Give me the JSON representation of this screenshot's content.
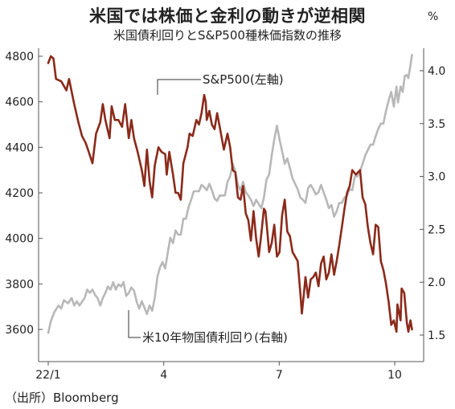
{
  "title": "米国では株価と金利の動きが逆相関",
  "subtitle": "米国債利回りとS&P500種株価指数の推移",
  "right_unit": "%",
  "source": "（出所）Bloomberg",
  "colors": {
    "sp500": "#8b2a1a",
    "yield": "#b8b8b8",
    "axis": "#555555"
  },
  "chart_data": {
    "type": "line",
    "title": "米国では株価と金利の動きが逆相関",
    "subtitle": "米国債利回りとS&P500種株価指数の推移",
    "x_ticks": [
      {
        "label": "22/1",
        "t": 0
      },
      {
        "label": "4",
        "t": 3
      },
      {
        "label": "7",
        "t": 6
      },
      {
        "label": "10",
        "t": 9
      }
    ],
    "xlim": [
      -0.05,
      9.45
    ],
    "left_axis": {
      "ticks": [
        3600,
        3800,
        4000,
        4200,
        4400,
        4600,
        4800
      ],
      "ylim": [
        3530,
        4890
      ]
    },
    "right_axis": {
      "ticks": [
        "1.5",
        "2.0",
        "2.5",
        "3.0",
        "3.5",
        "4.0"
      ],
      "ylim": [
        1.25,
        4.3
      ]
    },
    "series": [
      {
        "name": "S&P500(左軸)",
        "axis": "left",
        "values": [
          [
            0.0,
            4770
          ],
          [
            0.05,
            4800
          ],
          [
            0.1,
            4790
          ],
          [
            0.15,
            4700
          ],
          [
            0.25,
            4690
          ],
          [
            0.35,
            4650
          ],
          [
            0.4,
            4700
          ],
          [
            0.5,
            4590
          ],
          [
            0.58,
            4510
          ],
          [
            0.65,
            4450
          ],
          [
            0.72,
            4420
          ],
          [
            0.78,
            4380
          ],
          [
            0.85,
            4330
          ],
          [
            0.92,
            4460
          ],
          [
            1.0,
            4510
          ],
          [
            1.05,
            4590
          ],
          [
            1.1,
            4520
          ],
          [
            1.18,
            4440
          ],
          [
            1.22,
            4580
          ],
          [
            1.28,
            4520
          ],
          [
            1.35,
            4520
          ],
          [
            1.42,
            4490
          ],
          [
            1.48,
            4590
          ],
          [
            1.55,
            4440
          ],
          [
            1.6,
            4520
          ],
          [
            1.65,
            4440
          ],
          [
            1.72,
            4380
          ],
          [
            1.8,
            4300
          ],
          [
            1.85,
            4230
          ],
          [
            1.9,
            4390
          ],
          [
            1.95,
            4250
          ],
          [
            2.0,
            4180
          ],
          [
            2.05,
            4320
          ],
          [
            2.12,
            4400
          ],
          [
            2.18,
            4380
          ],
          [
            2.25,
            4370
          ],
          [
            2.28,
            4280
          ],
          [
            2.33,
            4380
          ],
          [
            2.4,
            4280
          ],
          [
            2.45,
            4200
          ],
          [
            2.5,
            4200
          ],
          [
            2.55,
            4170
          ],
          [
            2.6,
            4330
          ],
          [
            2.68,
            4400
          ],
          [
            2.72,
            4460
          ],
          [
            2.78,
            4450
          ],
          [
            2.85,
            4520
          ],
          [
            2.9,
            4500
          ],
          [
            2.95,
            4550
          ],
          [
            3.0,
            4630
          ],
          [
            3.03,
            4600
          ],
          [
            3.05,
            4520
          ],
          [
            3.1,
            4560
          ],
          [
            3.15,
            4500
          ],
          [
            3.2,
            4480
          ],
          [
            3.25,
            4550
          ],
          [
            3.3,
            4490
          ],
          [
            3.38,
            4390
          ],
          [
            3.45,
            4460
          ],
          [
            3.5,
            4400
          ],
          [
            3.55,
            4300
          ],
          [
            3.6,
            4290
          ],
          [
            3.65,
            4180
          ],
          [
            3.7,
            4170
          ],
          [
            3.75,
            4230
          ],
          [
            3.8,
            4110
          ],
          [
            3.85,
            4080
          ],
          [
            3.9,
            3990
          ],
          [
            3.95,
            4120
          ],
          [
            4.0,
            4000
          ],
          [
            4.05,
            3920
          ],
          [
            4.1,
            4020
          ],
          [
            4.15,
            4130
          ],
          [
            4.18,
            4120
          ],
          [
            4.22,
            4020
          ],
          [
            4.25,
            3940
          ],
          [
            4.3,
            3980
          ],
          [
            4.35,
            4060
          ],
          [
            4.4,
            3920
          ],
          [
            4.45,
            3940
          ],
          [
            4.5,
            4100
          ],
          [
            4.55,
            4170
          ],
          [
            4.6,
            4030
          ],
          [
            4.65,
            4010
          ],
          [
            4.7,
            3940
          ],
          [
            4.75,
            3920
          ],
          [
            4.8,
            3900
          ],
          [
            4.85,
            3760
          ],
          [
            4.88,
            3670
          ],
          [
            4.92,
            3760
          ],
          [
            4.95,
            3830
          ],
          [
            5.0,
            3740
          ],
          [
            5.05,
            3820
          ],
          [
            5.1,
            3830
          ],
          [
            5.15,
            3850
          ],
          [
            5.2,
            3790
          ],
          [
            5.25,
            3890
          ],
          [
            5.3,
            3920
          ],
          [
            5.35,
            3820
          ],
          [
            5.4,
            3850
          ],
          [
            5.45,
            3930
          ],
          [
            5.5,
            3840
          ],
          [
            5.55,
            3900
          ],
          [
            5.6,
            3970
          ],
          [
            5.65,
            4050
          ],
          [
            5.7,
            4130
          ],
          [
            5.75,
            4200
          ],
          [
            5.8,
            4230
          ],
          [
            5.85,
            4300
          ],
          [
            5.92,
            4280
          ],
          [
            6.0,
            4300
          ],
          [
            6.05,
            4180
          ],
          [
            6.1,
            4150
          ],
          [
            6.15,
            4050
          ],
          [
            6.2,
            3980
          ],
          [
            6.25,
            3930
          ],
          [
            6.3,
            4060
          ],
          [
            6.35,
            4050
          ],
          [
            6.4,
            3900
          ],
          [
            6.45,
            3860
          ],
          [
            6.5,
            3800
          ],
          [
            6.55,
            3720
          ],
          [
            6.6,
            3620
          ],
          [
            6.65,
            3640
          ],
          [
            6.7,
            3590
          ],
          [
            6.72,
            3710
          ],
          [
            6.78,
            3640
          ],
          [
            6.8,
            3780
          ],
          [
            6.85,
            3760
          ],
          [
            6.9,
            3630
          ],
          [
            6.93,
            3590
          ],
          [
            6.97,
            3640
          ],
          [
            7.0,
            3600
          ]
        ]
      },
      {
        "name": "米10年物国債利回り(右軸)",
        "axis": "right",
        "values": [
          [
            0.0,
            1.52
          ],
          [
            0.05,
            1.63
          ],
          [
            0.12,
            1.72
          ],
          [
            0.2,
            1.78
          ],
          [
            0.25,
            1.75
          ],
          [
            0.3,
            1.83
          ],
          [
            0.38,
            1.8
          ],
          [
            0.45,
            1.85
          ],
          [
            0.5,
            1.78
          ],
          [
            0.55,
            1.82
          ],
          [
            0.6,
            1.78
          ],
          [
            0.7,
            1.85
          ],
          [
            0.75,
            1.93
          ],
          [
            0.8,
            1.9
          ],
          [
            0.85,
            1.93
          ],
          [
            0.9,
            1.88
          ],
          [
            0.95,
            1.85
          ],
          [
            1.0,
            1.78
          ],
          [
            1.05,
            1.85
          ],
          [
            1.1,
            1.9
          ],
          [
            1.15,
            1.96
          ],
          [
            1.2,
            1.93
          ],
          [
            1.25,
            2.0
          ],
          [
            1.3,
            1.93
          ],
          [
            1.35,
            1.98
          ],
          [
            1.4,
            1.96
          ],
          [
            1.45,
            2.0
          ],
          [
            1.5,
            1.87
          ],
          [
            1.55,
            1.9
          ],
          [
            1.6,
            1.95
          ],
          [
            1.65,
            1.92
          ],
          [
            1.7,
            1.82
          ],
          [
            1.75,
            1.75
          ],
          [
            1.8,
            1.82
          ],
          [
            1.85,
            1.76
          ],
          [
            1.9,
            1.7
          ],
          [
            1.95,
            1.78
          ],
          [
            2.0,
            1.73
          ],
          [
            2.05,
            1.85
          ],
          [
            2.1,
            2.05
          ],
          [
            2.15,
            2.14
          ],
          [
            2.2,
            2.19
          ],
          [
            2.25,
            2.13
          ],
          [
            2.3,
            2.28
          ],
          [
            2.35,
            2.42
          ],
          [
            2.4,
            2.37
          ],
          [
            2.45,
            2.49
          ],
          [
            2.5,
            2.45
          ],
          [
            2.55,
            2.45
          ],
          [
            2.6,
            2.6
          ],
          [
            2.65,
            2.6
          ],
          [
            2.7,
            2.71
          ],
          [
            2.75,
            2.78
          ],
          [
            2.8,
            2.86
          ],
          [
            2.85,
            2.86
          ],
          [
            2.9,
            2.86
          ],
          [
            2.95,
            2.92
          ],
          [
            3.0,
            2.9
          ],
          [
            3.05,
            2.87
          ],
          [
            3.1,
            2.93
          ],
          [
            3.15,
            2.87
          ],
          [
            3.2,
            2.79
          ],
          [
            3.25,
            2.77
          ],
          [
            3.3,
            2.82
          ],
          [
            3.35,
            2.82
          ],
          [
            3.4,
            2.82
          ],
          [
            3.45,
            2.95
          ],
          [
            3.5,
            3.0
          ],
          [
            3.55,
            3.12
          ],
          [
            3.6,
            3.05
          ],
          [
            3.65,
            2.92
          ],
          [
            3.7,
            2.87
          ],
          [
            3.75,
            2.95
          ],
          [
            3.8,
            2.85
          ],
          [
            3.85,
            2.82
          ],
          [
            3.9,
            2.78
          ],
          [
            3.95,
            2.72
          ],
          [
            4.0,
            2.78
          ],
          [
            4.05,
            2.74
          ],
          [
            4.1,
            2.7
          ],
          [
            4.15,
            2.8
          ],
          [
            4.2,
            2.97
          ],
          [
            4.25,
            3.02
          ],
          [
            4.3,
            3.2
          ],
          [
            4.35,
            3.35
          ],
          [
            4.4,
            3.48
          ],
          [
            4.45,
            3.35
          ],
          [
            4.5,
            3.24
          ],
          [
            4.55,
            3.12
          ],
          [
            4.6,
            3.17
          ],
          [
            4.65,
            3.08
          ],
          [
            4.7,
            2.98
          ],
          [
            4.75,
            2.93
          ],
          [
            4.8,
            2.88
          ],
          [
            4.85,
            2.8
          ],
          [
            4.9,
            2.78
          ],
          [
            4.95,
            2.75
          ],
          [
            5.0,
            2.89
          ],
          [
            5.05,
            2.92
          ],
          [
            5.1,
            2.88
          ],
          [
            5.15,
            2.83
          ],
          [
            5.2,
            2.85
          ],
          [
            5.25,
            2.92
          ],
          [
            5.3,
            2.85
          ],
          [
            5.35,
            2.78
          ],
          [
            5.4,
            2.7
          ],
          [
            5.45,
            2.73
          ],
          [
            5.5,
            2.62
          ],
          [
            5.55,
            2.67
          ],
          [
            5.6,
            2.75
          ],
          [
            5.65,
            2.75
          ],
          [
            5.7,
            2.8
          ],
          [
            5.75,
            2.82
          ],
          [
            5.8,
            2.88
          ],
          [
            5.85,
            2.87
          ],
          [
            5.9,
            3.0
          ],
          [
            5.95,
            3.0
          ],
          [
            6.0,
            3.05
          ],
          [
            6.05,
            3.12
          ],
          [
            6.1,
            3.2
          ],
          [
            6.15,
            3.25
          ],
          [
            6.2,
            3.3
          ],
          [
            6.25,
            3.3
          ],
          [
            6.3,
            3.38
          ],
          [
            6.35,
            3.45
          ],
          [
            6.4,
            3.5
          ],
          [
            6.45,
            3.5
          ],
          [
            6.5,
            3.62
          ],
          [
            6.55,
            3.72
          ],
          [
            6.6,
            3.8
          ],
          [
            6.65,
            3.66
          ],
          [
            6.7,
            3.85
          ],
          [
            6.73,
            3.7
          ],
          [
            6.78,
            3.85
          ],
          [
            6.82,
            3.8
          ],
          [
            6.86,
            3.95
          ],
          [
            6.9,
            3.96
          ],
          [
            6.93,
            3.93
          ],
          [
            6.97,
            4.05
          ],
          [
            7.0,
            4.15
          ]
        ]
      }
    ],
    "annotations": [
      {
        "text": "S&P500(左軸)",
        "series": 0
      },
      {
        "text": "米10年物国債利回り(右軸)",
        "series": 1
      }
    ]
  }
}
